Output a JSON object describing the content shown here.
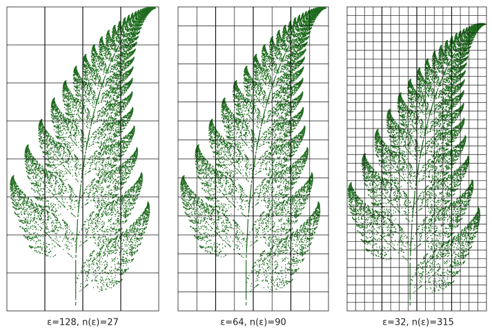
{
  "panels": [
    {
      "caption": "ε=128, n(ε)=27"
    },
    {
      "caption": "ε=64, n(ε)=90"
    },
    {
      "caption": "ε=32, n(ε)=315"
    }
  ]
}
